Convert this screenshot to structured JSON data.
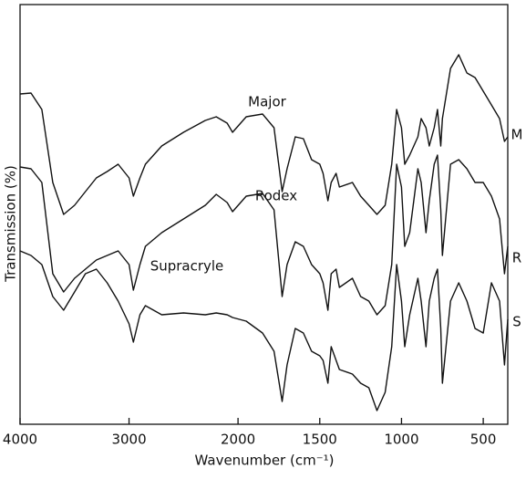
{
  "chart_data": {
    "type": "line",
    "x_label": "Wavenumber (cm⁻¹)",
    "y_label": "Transmission (%)",
    "annotations": [
      "Major",
      "Rodex",
      "Supracryle"
    ],
    "end_labels": [
      "M",
      "R",
      "S"
    ],
    "x": [
      4000,
      3900,
      3800,
      3700,
      3600,
      3500,
      3400,
      3300,
      3200,
      3100,
      3000,
      2960,
      2900,
      2850,
      2700,
      2500,
      2300,
      2200,
      2100,
      2050,
      1950,
      1850,
      1780,
      1730,
      1700,
      1650,
      1600,
      1550,
      1500,
      1480,
      1450,
      1430,
      1400,
      1380,
      1300,
      1250,
      1200,
      1150,
      1100,
      1060,
      1030,
      1000,
      980,
      950,
      900,
      880,
      850,
      830,
      800,
      780,
      760,
      750,
      700,
      650,
      600,
      550,
      500,
      450,
      400,
      370,
      350
    ],
    "series": [
      {
        "name": "Major",
        "color": "#111111",
        "values": [
          362,
          363,
          345,
          265,
          230,
          240,
          255,
          270,
          277,
          285,
          270,
          250,
          270,
          285,
          305,
          320,
          333,
          337,
          330,
          320,
          337,
          340,
          325,
          255,
          280,
          315,
          313,
          290,
          285,
          275,
          245,
          265,
          275,
          260,
          265,
          250,
          240,
          230,
          240,
          285,
          345,
          325,
          285,
          295,
          315,
          335,
          325,
          305,
          325,
          345,
          305,
          335,
          390,
          405,
          385,
          380,
          365,
          350,
          335,
          310,
          315
        ]
      },
      {
        "name": "Rodex",
        "color": "#111111",
        "values": [
          282,
          280,
          265,
          165,
          145,
          160,
          170,
          180,
          185,
          190,
          175,
          147,
          175,
          195,
          210,
          225,
          240,
          252,
          243,
          233,
          250,
          253,
          235,
          140,
          175,
          200,
          195,
          175,
          165,
          155,
          125,
          165,
          170,
          150,
          160,
          140,
          135,
          120,
          130,
          175,
          285,
          260,
          195,
          210,
          280,
          265,
          210,
          245,
          285,
          295,
          235,
          185,
          285,
          290,
          280,
          265,
          265,
          250,
          225,
          165,
          195
        ]
      },
      {
        "name": "Supracryle",
        "color": "#111111",
        "values": [
          190,
          185,
          175,
          140,
          125,
          145,
          165,
          170,
          155,
          135,
          110,
          90,
          120,
          130,
          120,
          122,
          120,
          122,
          120,
          117,
          113,
          100,
          80,
          25,
          65,
          105,
          100,
          80,
          75,
          70,
          45,
          85,
          70,
          60,
          55,
          45,
          40,
          15,
          35,
          85,
          175,
          135,
          85,
          120,
          160,
          135,
          85,
          135,
          160,
          170,
          105,
          45,
          135,
          155,
          135,
          105,
          100,
          155,
          135,
          65,
          115
        ]
      }
    ],
    "xlim": [
      4000,
      350
    ],
    "xticks": [
      4000,
      3000,
      2000,
      1500,
      1000,
      500
    ],
    "x_scale_change": {
      "at": 2000,
      "factor": 1.5
    },
    "ylim": [
      0,
      460
    ],
    "legend": false,
    "grid": false
  }
}
